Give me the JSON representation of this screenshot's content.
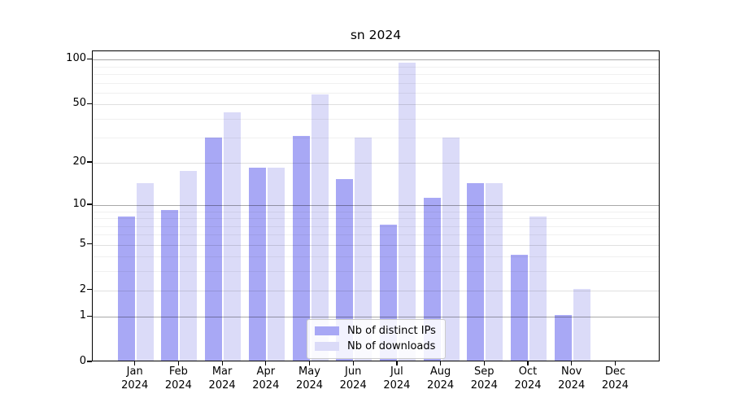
{
  "title": "sn 2024",
  "y_axis": {
    "tick_labels": [
      "0",
      "1",
      "2",
      "5",
      "10",
      "20",
      "50",
      "100"
    ],
    "tick_values": [
      0,
      1,
      2,
      5,
      10,
      20,
      50,
      100
    ],
    "minor_values": [
      3,
      4,
      6,
      7,
      8,
      9,
      30,
      40,
      60,
      70,
      80,
      90
    ]
  },
  "x_axis": {
    "months": [
      "Jan",
      "Feb",
      "Mar",
      "Apr",
      "May",
      "Jun",
      "Jul",
      "Aug",
      "Sep",
      "Oct",
      "Nov",
      "Dec"
    ],
    "year": "2024"
  },
  "legend": {
    "items": [
      {
        "label": "Nb of distinct IPs",
        "color": "#a8a8f5"
      },
      {
        "label": "Nb of downloads",
        "color": "#dbdbf8"
      }
    ]
  },
  "chart_data": {
    "type": "bar",
    "title": "sn 2024",
    "categories": [
      "Jan 2024",
      "Feb 2024",
      "Mar 2024",
      "Apr 2024",
      "May 2024",
      "Jun 2024",
      "Jul 2024",
      "Aug 2024",
      "Sep 2024",
      "Oct 2024",
      "Nov 2024",
      "Dec 2024"
    ],
    "series": [
      {
        "name": "Nb of distinct IPs",
        "color": "#a8a8f5",
        "values": [
          8,
          9,
          29,
          18,
          30,
          15,
          7,
          11,
          14,
          4,
          1,
          0
        ]
      },
      {
        "name": "Nb of downloads",
        "color": "#dbdbf8",
        "values": [
          14,
          17,
          43,
          18,
          57,
          29,
          93,
          29,
          14,
          8,
          2,
          0
        ]
      }
    ],
    "yscale": "log1p",
    "y_ticks": [
      0,
      1,
      2,
      5,
      10,
      20,
      50,
      100
    ],
    "ylim": [
      0,
      100
    ],
    "grid": true,
    "legend_position": "lower center"
  }
}
